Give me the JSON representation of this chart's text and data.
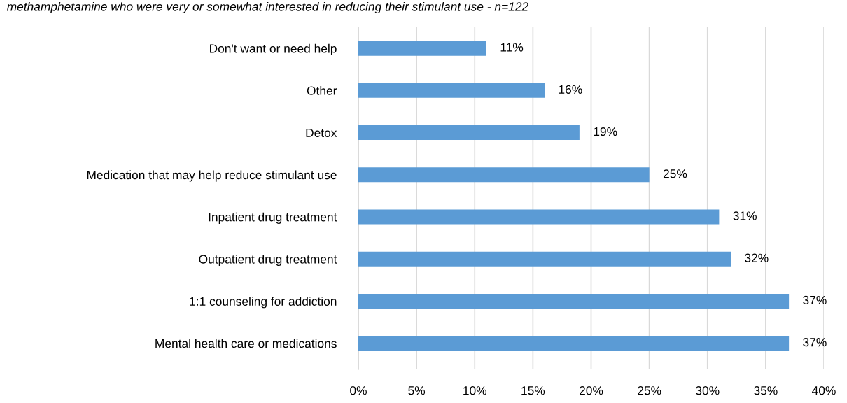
{
  "chart_data": {
    "type": "bar",
    "orientation": "horizontal",
    "title": "methamphetamine who were very or somewhat interested in reducing their stimulant use - n=122",
    "categories": [
      "Don't want or need help",
      "Other",
      "Detox",
      "Medication that may help reduce stimulant use",
      "Inpatient drug treatment",
      "Outpatient drug treatment",
      "1:1 counseling for addiction",
      "Mental health care or medications"
    ],
    "values": [
      11,
      16,
      19,
      25,
      31,
      32,
      37,
      37
    ],
    "value_labels": [
      "11%",
      "16%",
      "19%",
      "25%",
      "31%",
      "32%",
      "37%",
      "37%"
    ],
    "color": "#5b9bd5",
    "xlim": [
      0,
      40
    ],
    "xticks": [
      {
        "value": 0,
        "label": "0%"
      },
      {
        "value": 5,
        "label": "5%"
      },
      {
        "value": 10,
        "label": "10%"
      },
      {
        "value": 15,
        "label": "15%"
      },
      {
        "value": 20,
        "label": "20%"
      },
      {
        "value": 25,
        "label": "25%"
      },
      {
        "value": 30,
        "label": "30%"
      },
      {
        "value": 35,
        "label": "35%"
      },
      {
        "value": 40,
        "label": "40%"
      }
    ],
    "grid": "x",
    "legend": false
  }
}
